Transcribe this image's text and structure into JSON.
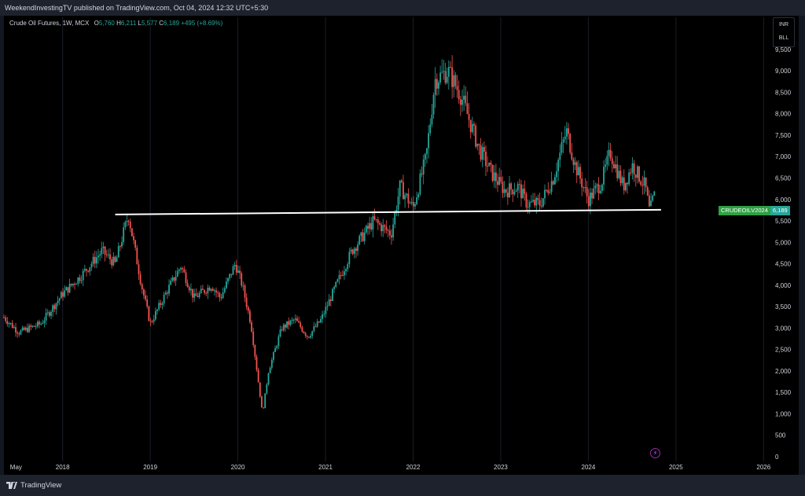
{
  "header": {
    "publish_text": "WeekendInvestingTV published on TradingView.com, Oct 04, 2024 12:32 UTC+5:30"
  },
  "legend": {
    "symbol_text": "Crude Oil Futures, 1W, MCX",
    "o_label": "O",
    "o_value": "5,760",
    "h_label": "H",
    "h_value": "6,211",
    "l_label": "L",
    "l_value": "5,577",
    "c_label": "C",
    "c_value": "6,189",
    "change": "+495 (+8.69%)"
  },
  "scale_menu": {
    "currency": "INR",
    "unit": "BLL"
  },
  "price_tag": {
    "symbol": "CRUDEOILV2024",
    "value": "6,189"
  },
  "footer": {
    "brand": "TradingView"
  },
  "colors": {
    "up": "#26a69a",
    "down": "#ef5350",
    "background": "#000000",
    "trendline": "#ffffff"
  },
  "icons": {
    "snapshot": "lightning-icon",
    "brand": "tradingview-logo-icon"
  },
  "chart_data": {
    "type": "candlestick",
    "interval": "1W",
    "ylim": [
      0,
      10250
    ],
    "y_ticks": [
      0,
      500,
      1000,
      1500,
      2000,
      2500,
      3000,
      3500,
      4000,
      4500,
      5000,
      5500,
      6000,
      6500,
      7000,
      7500,
      8000,
      8500,
      9000,
      9500,
      10000
    ],
    "y_tick_labels": [
      "0",
      "500",
      "1,000",
      "1,500",
      "2,000",
      "2,500",
      "3,000",
      "3,500",
      "4,000",
      "4,500",
      "5,000",
      "5,500",
      "6,000",
      "6,500",
      "7,000",
      "7,500",
      "8,000",
      "8,500",
      "9,000",
      "9,500",
      "10,000"
    ],
    "x_ticks": [
      2017.4,
      2018,
      2019,
      2020,
      2021,
      2022,
      2023,
      2024,
      2025,
      2026
    ],
    "x_tick_labels": [
      "May",
      "2018",
      "2019",
      "2020",
      "2021",
      "2022",
      "2023",
      "2024",
      "2025",
      "2026"
    ],
    "xlim": [
      2017.33,
      2026.06
    ],
    "price_path": [
      [
        2017.33,
        3250
      ],
      [
        2017.5,
        2900
      ],
      [
        2017.75,
        3100
      ],
      [
        2018.0,
        3800
      ],
      [
        2018.2,
        4200
      ],
      [
        2018.45,
        4800
      ],
      [
        2018.6,
        4500
      ],
      [
        2018.75,
        5650
      ],
      [
        2018.9,
        4000
      ],
      [
        2019.0,
        3100
      ],
      [
        2019.2,
        3900
      ],
      [
        2019.35,
        4450
      ],
      [
        2019.5,
        3700
      ],
      [
        2019.7,
        4000
      ],
      [
        2019.8,
        3700
      ],
      [
        2019.97,
        4500
      ],
      [
        2020.05,
        4000
      ],
      [
        2020.15,
        3100
      ],
      [
        2020.28,
        1000
      ],
      [
        2020.35,
        2000
      ],
      [
        2020.5,
        3000
      ],
      [
        2020.65,
        3200
      ],
      [
        2020.8,
        2800
      ],
      [
        2020.95,
        3200
      ],
      [
        2021.1,
        3900
      ],
      [
        2021.3,
        4800
      ],
      [
        2021.55,
        5500
      ],
      [
        2021.75,
        5200
      ],
      [
        2021.85,
        6300
      ],
      [
        2022.0,
        5800
      ],
      [
        2022.15,
        7000
      ],
      [
        2022.25,
        8800
      ],
      [
        2022.4,
        9000
      ],
      [
        2022.55,
        8400
      ],
      [
        2022.75,
        7200
      ],
      [
        2022.9,
        6600
      ],
      [
        2023.05,
        6200
      ],
      [
        2023.2,
        6300
      ],
      [
        2023.3,
        5900
      ],
      [
        2023.45,
        5900
      ],
      [
        2023.6,
        6500
      ],
      [
        2023.75,
        7600
      ],
      [
        2023.85,
        6800
      ],
      [
        2024.0,
        6000
      ],
      [
        2024.15,
        6400
      ],
      [
        2024.25,
        7100
      ],
      [
        2024.4,
        6300
      ],
      [
        2024.5,
        6800
      ],
      [
        2024.65,
        6300
      ],
      [
        2024.7,
        5700
      ],
      [
        2024.76,
        6189
      ]
    ],
    "trendline": {
      "x": [
        2018.6,
        2024.83
      ],
      "y": [
        5650,
        5760
      ]
    },
    "last_price": 6189
  }
}
